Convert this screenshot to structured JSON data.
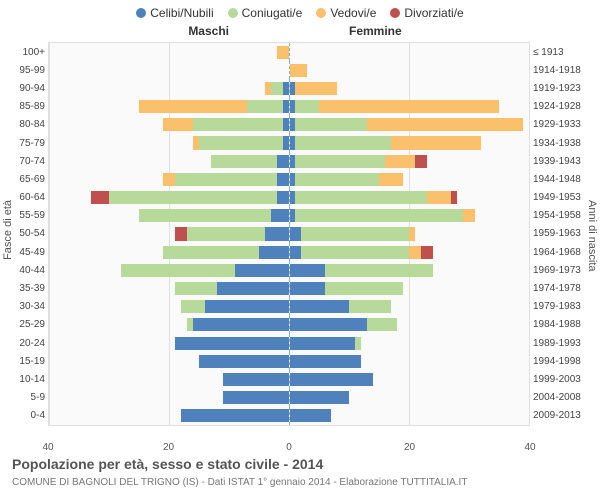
{
  "chart": {
    "type": "population-pyramid",
    "legend": [
      {
        "label": "Celibi/Nubili",
        "color": "#4f81bd"
      },
      {
        "label": "Coniugati/e",
        "color": "#b7d99a"
      },
      {
        "label": "Vedovi/e",
        "color": "#fbc06c"
      },
      {
        "label": "Divorziati/e",
        "color": "#c0504d"
      }
    ],
    "col_male": "Maschi",
    "col_female": "Femmine",
    "ylabel_left": "Fasce di età",
    "ylabel_right": "Anni di nascita",
    "xmax": 40,
    "xticks": [
      40,
      20,
      0,
      20,
      40
    ],
    "background_color": "#fafafa",
    "grid_color": "#e0e0e0",
    "midline_color": "#7faedb",
    "rows": [
      {
        "age": "100+",
        "yr": "≤ 1913",
        "m": {
          "c": 0,
          "m": 0,
          "w": 2,
          "d": 0
        },
        "f": {
          "c": 0,
          "m": 0,
          "w": 0,
          "d": 0
        }
      },
      {
        "age": "95-99",
        "yr": "1914-1918",
        "m": {
          "c": 0,
          "m": 0,
          "w": 0,
          "d": 0
        },
        "f": {
          "c": 0,
          "m": 0,
          "w": 3,
          "d": 0
        }
      },
      {
        "age": "90-94",
        "yr": "1919-1923",
        "m": {
          "c": 1,
          "m": 2,
          "w": 1,
          "d": 0
        },
        "f": {
          "c": 1,
          "m": 0,
          "w": 7,
          "d": 0
        }
      },
      {
        "age": "85-89",
        "yr": "1924-1928",
        "m": {
          "c": 1,
          "m": 6,
          "w": 18,
          "d": 0
        },
        "f": {
          "c": 1,
          "m": 4,
          "w": 30,
          "d": 0
        }
      },
      {
        "age": "80-84",
        "yr": "1929-1933",
        "m": {
          "c": 1,
          "m": 15,
          "w": 5,
          "d": 0
        },
        "f": {
          "c": 1,
          "m": 12,
          "w": 26,
          "d": 0
        }
      },
      {
        "age": "75-79",
        "yr": "1934-1938",
        "m": {
          "c": 1,
          "m": 14,
          "w": 1,
          "d": 0
        },
        "f": {
          "c": 1,
          "m": 16,
          "w": 15,
          "d": 0
        }
      },
      {
        "age": "70-74",
        "yr": "1939-1943",
        "m": {
          "c": 2,
          "m": 11,
          "w": 0,
          "d": 0
        },
        "f": {
          "c": 1,
          "m": 15,
          "w": 5,
          "d": 2
        }
      },
      {
        "age": "65-69",
        "yr": "1944-1948",
        "m": {
          "c": 2,
          "m": 17,
          "w": 2,
          "d": 0
        },
        "f": {
          "c": 1,
          "m": 14,
          "w": 4,
          "d": 0
        }
      },
      {
        "age": "60-64",
        "yr": "1949-1953",
        "m": {
          "c": 2,
          "m": 28,
          "w": 0,
          "d": 3
        },
        "f": {
          "c": 1,
          "m": 22,
          "w": 4,
          "d": 1
        }
      },
      {
        "age": "55-59",
        "yr": "1954-1958",
        "m": {
          "c": 3,
          "m": 22,
          "w": 0,
          "d": 0
        },
        "f": {
          "c": 1,
          "m": 28,
          "w": 2,
          "d": 0
        }
      },
      {
        "age": "50-54",
        "yr": "1959-1963",
        "m": {
          "c": 4,
          "m": 13,
          "w": 0,
          "d": 2
        },
        "f": {
          "c": 2,
          "m": 18,
          "w": 1,
          "d": 0
        }
      },
      {
        "age": "45-49",
        "yr": "1964-1968",
        "m": {
          "c": 5,
          "m": 16,
          "w": 0,
          "d": 0
        },
        "f": {
          "c": 2,
          "m": 18,
          "w": 2,
          "d": 2
        }
      },
      {
        "age": "40-44",
        "yr": "1969-1973",
        "m": {
          "c": 9,
          "m": 19,
          "w": 0,
          "d": 0
        },
        "f": {
          "c": 6,
          "m": 18,
          "w": 0,
          "d": 0
        }
      },
      {
        "age": "35-39",
        "yr": "1974-1978",
        "m": {
          "c": 12,
          "m": 7,
          "w": 0,
          "d": 0
        },
        "f": {
          "c": 6,
          "m": 13,
          "w": 0,
          "d": 0
        }
      },
      {
        "age": "30-34",
        "yr": "1979-1983",
        "m": {
          "c": 14,
          "m": 4,
          "w": 0,
          "d": 0
        },
        "f": {
          "c": 10,
          "m": 7,
          "w": 0,
          "d": 0
        }
      },
      {
        "age": "25-29",
        "yr": "1984-1988",
        "m": {
          "c": 16,
          "m": 1,
          "w": 0,
          "d": 0
        },
        "f": {
          "c": 13,
          "m": 5,
          "w": 0,
          "d": 0
        }
      },
      {
        "age": "20-24",
        "yr": "1989-1993",
        "m": {
          "c": 19,
          "m": 0,
          "w": 0,
          "d": 0
        },
        "f": {
          "c": 11,
          "m": 1,
          "w": 0,
          "d": 0
        }
      },
      {
        "age": "15-19",
        "yr": "1994-1998",
        "m": {
          "c": 15,
          "m": 0,
          "w": 0,
          "d": 0
        },
        "f": {
          "c": 12,
          "m": 0,
          "w": 0,
          "d": 0
        }
      },
      {
        "age": "10-14",
        "yr": "1999-2003",
        "m": {
          "c": 11,
          "m": 0,
          "w": 0,
          "d": 0
        },
        "f": {
          "c": 14,
          "m": 0,
          "w": 0,
          "d": 0
        }
      },
      {
        "age": "5-9",
        "yr": "2004-2008",
        "m": {
          "c": 11,
          "m": 0,
          "w": 0,
          "d": 0
        },
        "f": {
          "c": 10,
          "m": 0,
          "w": 0,
          "d": 0
        }
      },
      {
        "age": "0-4",
        "yr": "2009-2013",
        "m": {
          "c": 18,
          "m": 0,
          "w": 0,
          "d": 0
        },
        "f": {
          "c": 7,
          "m": 0,
          "w": 0,
          "d": 0
        }
      }
    ],
    "title": "Popolazione per età, sesso e stato civile - 2014",
    "subtitle": "COMUNE DI BAGNOLI DEL TRIGNO (IS) - Dati ISTAT 1° gennaio 2014 - Elaborazione TUTTITALIA.IT"
  }
}
